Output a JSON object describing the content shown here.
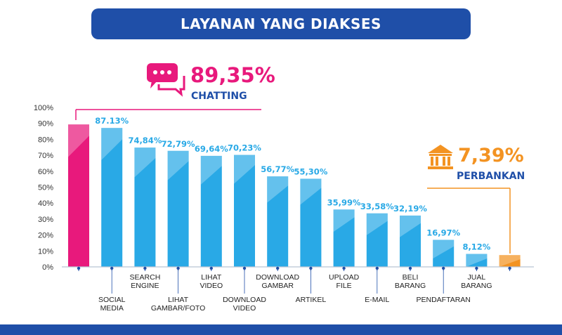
{
  "header": {
    "title": "LAYANAN YANG DIAKSES"
  },
  "callouts": {
    "chatting": {
      "value": "89,35%",
      "label": "CHATTING",
      "icon": "chat-bubbles-icon",
      "color": "#e8197c"
    },
    "perbankan": {
      "value": "7,39%",
      "label": "PERBANKAN",
      "icon": "bank-icon",
      "color": "#f39322"
    }
  },
  "colors": {
    "accent": "#1f4fa8",
    "bar": "#29a9e6",
    "highlight": "#e8197c",
    "highlight2": "#f39322"
  },
  "chart_data": {
    "type": "bar",
    "title": "LAYANAN YANG DIAKSES",
    "ylim": [
      0,
      100
    ],
    "yticks": [
      "0%",
      "10%",
      "20%",
      "30%",
      "40%",
      "50%",
      "60%",
      "70%",
      "80%",
      "90%",
      "100%"
    ],
    "grid": false,
    "categories": [
      [
        "CHATTING"
      ],
      [
        "SOCIAL",
        "MEDIA"
      ],
      [
        "SEARCH",
        "ENGINE"
      ],
      [
        "LIHAT",
        "GAMBAR/FOTO"
      ],
      [
        "LIHAT",
        "VIDEO"
      ],
      [
        "DOWNLOAD",
        "VIDEO"
      ],
      [
        "DOWNLOAD",
        "GAMBAR"
      ],
      [
        "ARTIKEL"
      ],
      [
        "UPLOAD",
        "FILE"
      ],
      [
        "E-MAIL"
      ],
      [
        "BELI",
        "BARANG"
      ],
      [
        "PENDAFTARAN"
      ],
      [
        "JUAL",
        "BARANG"
      ],
      [
        "PERBANKAN"
      ]
    ],
    "values": [
      89.35,
      87.13,
      74.84,
      72.79,
      69.64,
      70.23,
      56.77,
      55.3,
      35.99,
      33.58,
      32.19,
      16.97,
      8.12,
      7.39
    ],
    "value_labels": [
      "",
      "87.13%",
      "74,84%",
      "72,79%",
      "69,64%",
      "70,23%",
      "56,77%",
      "55,30%",
      "35,99%",
      "33,58%",
      "32,19%",
      "16,97%",
      "8,12%",
      ""
    ],
    "show_category_label": [
      false,
      true,
      true,
      true,
      true,
      true,
      true,
      true,
      true,
      true,
      true,
      true,
      true,
      false
    ],
    "bar_colors": [
      "#e8197c",
      "#29a9e6",
      "#29a9e6",
      "#29a9e6",
      "#29a9e6",
      "#29a9e6",
      "#29a9e6",
      "#29a9e6",
      "#29a9e6",
      "#29a9e6",
      "#29a9e6",
      "#29a9e6",
      "#29a9e6",
      "#f39322"
    ]
  }
}
